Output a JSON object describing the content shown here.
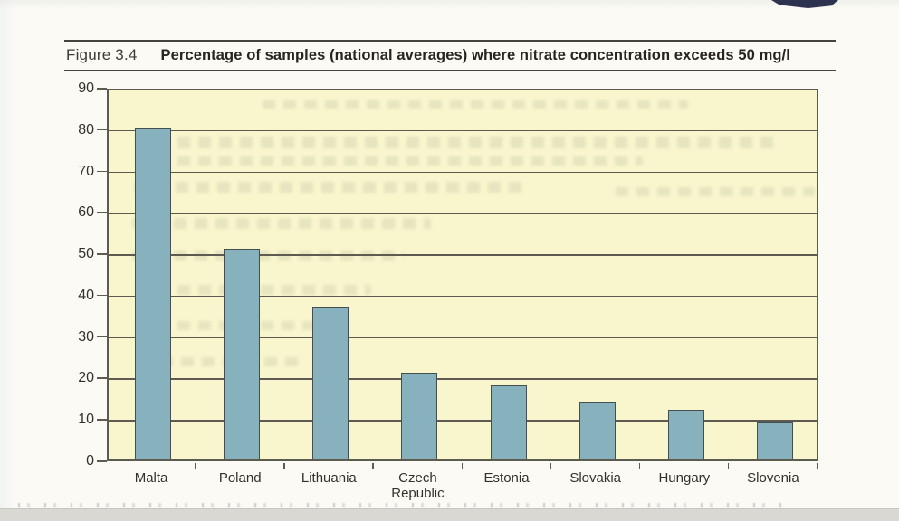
{
  "figure": {
    "label": "Figure 3.4",
    "title": "Percentage of samples (national averages) where nitrate concentration exceeds 50 mg/l"
  },
  "chart_data": {
    "type": "bar",
    "categories": [
      "Malta",
      "Poland",
      "Lithuania",
      "Czech Republic",
      "Estonia",
      "Slovakia",
      "Hungary",
      "Slovenia"
    ],
    "values": [
      80,
      51,
      37,
      21,
      18,
      14,
      12,
      9
    ],
    "title": "Percentage of samples (national averages) where nitrate concentration exceeds 50 mg/l",
    "xlabel": "",
    "ylabel": "",
    "ylim": [
      0,
      90
    ],
    "yticks": [
      0,
      10,
      20,
      30,
      40,
      50,
      60,
      70,
      80,
      90
    ],
    "grid": true,
    "legend_position": "none",
    "bar_color": "#87b2bd",
    "plot_background": "#f9f5cd",
    "gridline_color": "#5d5b51"
  }
}
